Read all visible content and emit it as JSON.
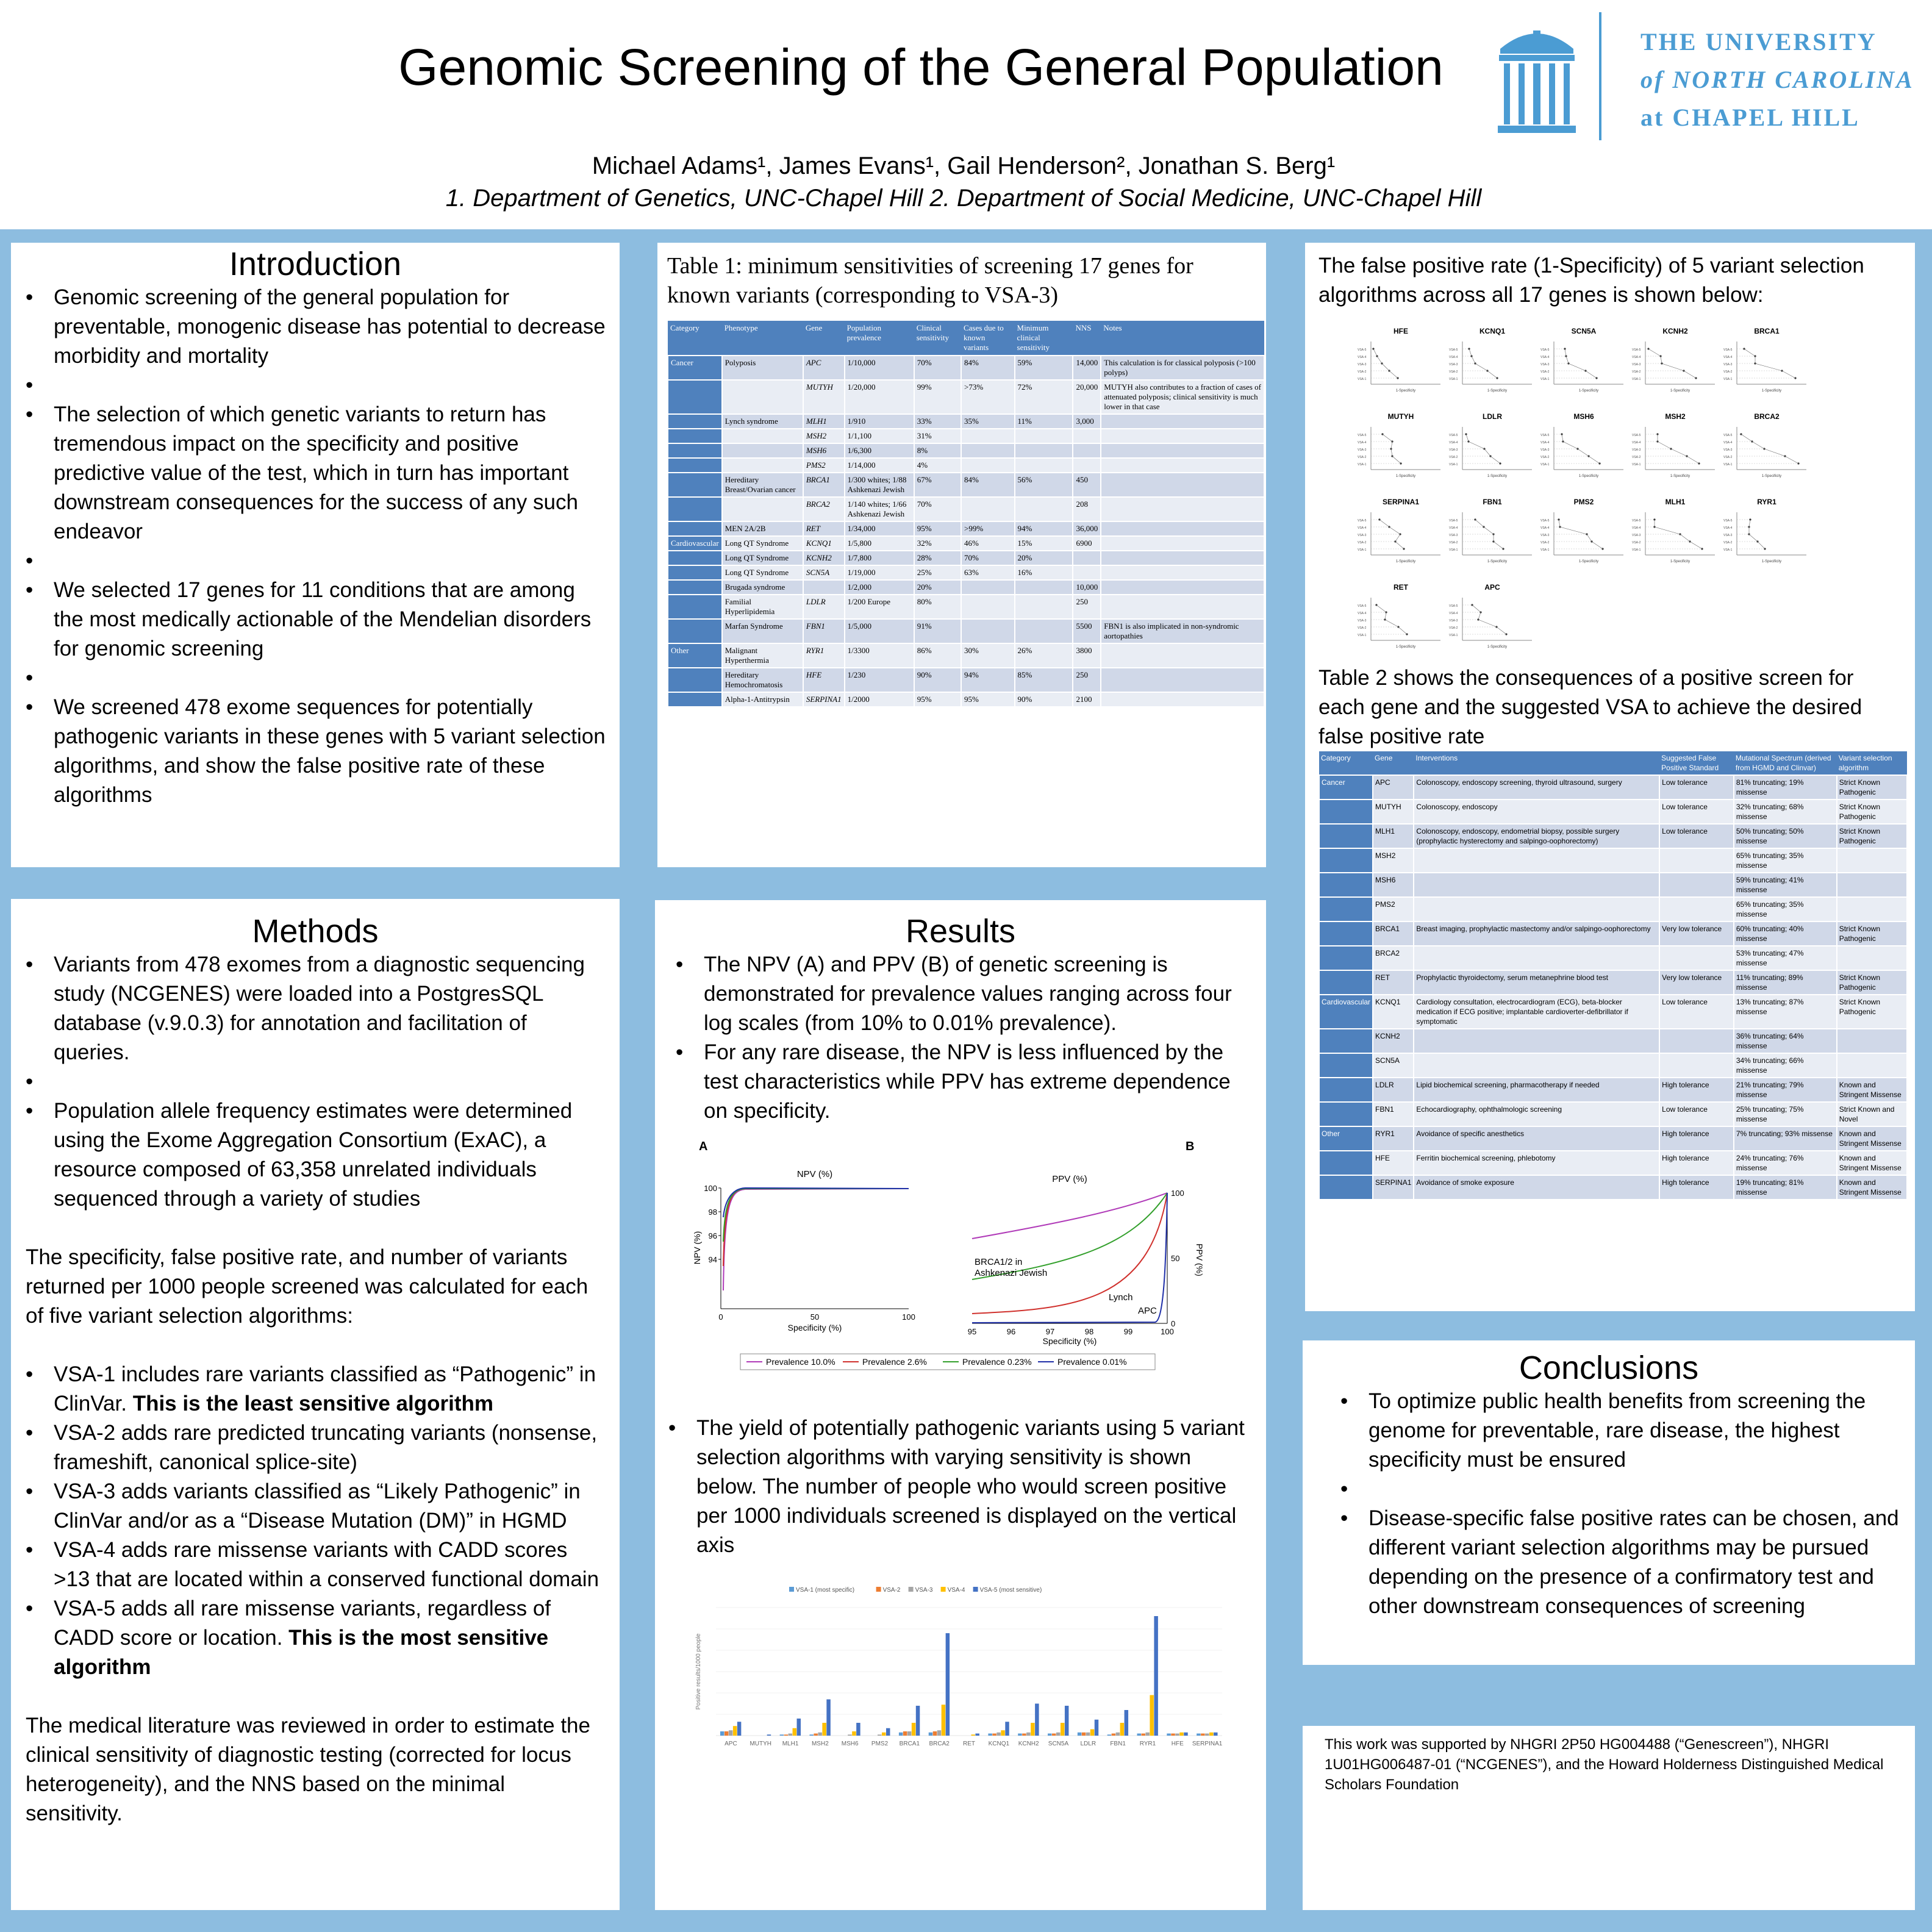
{
  "header": {
    "title": "Genomic Screening of the General Population",
    "authors": "Michael Adams¹, James Evans¹, Gail Henderson², Jonathan S. Berg¹",
    "affiliations": "1. Department of Genetics, UNC-Chapel Hill 2. Department of Social Medicine, UNC-Chapel Hill",
    "logo_line1": "THE UNIVERSITY",
    "logo_line2": "of NORTH CAROLINA",
    "logo_line3": "at CHAPEL HILL"
  },
  "introduction": {
    "title": "Introduction",
    "bullets": [
      "Genomic screening of the general population for preventable, monogenic disease has potential to decrease morbidity and mortality",
      "The selection of which genetic variants to return has tremendous impact on the specificity and positive predictive value of the test, which in turn has important downstream consequences for the success of any such endeavor",
      "We selected 17 genes for 11 conditions that are among the most medically actionable of the Mendelian disorders for genomic screening",
      "We screened 478 exome sequences for potentially pathogenic variants in these genes with 5 variant selection algorithms, and show the false positive rate of these algorithms"
    ]
  },
  "methods": {
    "title": "Methods",
    "bullets1": [
      "Variants from 478 exomes from a diagnostic sequencing study (NCGENES) were loaded into a PostgresSQL database (v.9.0.3) for annotation and facilitation of queries.",
      "Population allele frequency estimates were determined using the Exome Aggregation Consortium (ExAC), a resource composed of 63,358 unrelated individuals sequenced through a variety of studies"
    ],
    "para1": "The specificity, false positive rate, and number of variants returned per 1000 people screened was calculated for each of five variant selection algorithms:",
    "vsa1": "VSA-1 includes rare variants classified as “Pathogenic” in ClinVar.",
    "vsa1_bold": "This is the least sensitive algorithm",
    "vsa2": " VSA-2 adds rare predicted truncating variants (nonsense, frameshift, canonical splice-site)",
    "vsa3": "VSA-3 adds variants classified as “Likely Pathogenic” in ClinVar and/or as a “Disease Mutation (DM)” in HGMD",
    "vsa4": "VSA-4 adds rare missense variants with CADD scores >13 that are located within a conserved functional domain",
    "vsa5": "VSA-5 adds all rare missense variants, regardless of CADD score or location.",
    "vsa5_bold": "This is the most sensitive algorithm",
    "para2": "The medical literature was reviewed in order to estimate the clinical sensitivity of diagnostic testing (corrected for locus heterogeneity), and the NNS based on the minimal sensitivity."
  },
  "table1": {
    "title": "Table 1: minimum sensitivities of screening 17 genes for known variants (corresponding to VSA-3)",
    "headers": [
      "Category",
      "Phenotype",
      "Gene",
      "Population prevalence",
      "Clinical sensitivity",
      "Cases due to known variants",
      "Minimum clinical sensitivity",
      "NNS",
      "Notes"
    ],
    "rows": [
      [
        "Cancer",
        "Polyposis",
        "APC",
        "1/10,000",
        "70%",
        "84%",
        "59%",
        "14,000",
        "This calculation is for classical polyposis (>100 polyps)"
      ],
      [
        "",
        "",
        "MUTYH",
        "1/20,000",
        "99%",
        ">73%",
        "72%",
        "20,000",
        "MUTYH also contributes to a fraction of cases of attenuated polyposis; clinical sensitivity is much lower in that case"
      ],
      [
        "",
        "Lynch syndrome",
        "MLH1",
        "1/910",
        "33%",
        "35%",
        "11%",
        "3,000",
        ""
      ],
      [
        "",
        "",
        "MSH2",
        "1/1,100",
        "31%",
        "",
        "",
        "",
        ""
      ],
      [
        "",
        "",
        "MSH6",
        "1/6,300",
        "8%",
        "",
        "",
        "",
        ""
      ],
      [
        "",
        "",
        "PMS2",
        "1/14,000",
        "4%",
        "",
        "",
        "",
        ""
      ],
      [
        "",
        "Hereditary Breast/Ovarian cancer",
        "BRCA1",
        "1/300 whites; 1/88 Ashkenazi Jewish",
        "67%",
        "84%",
        "56%",
        "450",
        ""
      ],
      [
        "",
        "",
        "BRCA2",
        "1/140 whites; 1/66 Ashkenazi Jewish",
        "70%",
        "",
        "",
        "208",
        ""
      ],
      [
        "",
        "MEN 2A/2B",
        "RET",
        "1/34,000",
        "95%",
        ">99%",
        "94%",
        "36,000",
        ""
      ],
      [
        "Cardiovascular",
        "Long QT Syndrome",
        "KCNQ1",
        "1/5,800",
        "32%",
        "46%",
        "15%",
        "6900",
        ""
      ],
      [
        "",
        "Long QT Syndrome",
        "KCNH2",
        "1/7,800",
        "28%",
        "70%",
        "20%",
        "",
        ""
      ],
      [
        "",
        "Long QT Syndrome",
        "SCN5A",
        "1/19,000",
        "25%",
        "63%",
        "16%",
        "",
        ""
      ],
      [
        "",
        "Brugada syndrome",
        "",
        "1/2,000",
        "20%",
        "",
        "",
        "10,000",
        ""
      ],
      [
        "",
        "Familial Hyperlipidemia",
        "LDLR",
        "1/200 Europe",
        "80%",
        "",
        "",
        "250",
        ""
      ],
      [
        "",
        "Marfan Syndrome",
        "FBN1",
        "1/5,000",
        "91%",
        "",
        "",
        "5500",
        "FBN1 is also implicated in non-syndromic aortopathies"
      ],
      [
        "Other",
        "Malignant Hyperthermia",
        "RYR1",
        "1/3300",
        "86%",
        "30%",
        "26%",
        "3800",
        ""
      ],
      [
        "",
        "Hereditary Hemochromatosis",
        "HFE",
        "1/230",
        "90%",
        "94%",
        "85%",
        "250",
        ""
      ],
      [
        "",
        "Alpha-1-Antitrypsin",
        "SERPINA1",
        "1/2000",
        "95%",
        "95%",
        "90%",
        "2100",
        ""
      ]
    ]
  },
  "fpr": {
    "text": "The false positive rate (1-Specificity) of 5 variant selection algorithms across all 17 genes is shown below:",
    "genes": [
      "HFE",
      "KCNQ1",
      "SCN5A",
      "KCNH2",
      "BRCA1",
      "MUTYH",
      "LDLR",
      "MSH6",
      "MSH2",
      "BRCA2",
      "SERPINA1",
      "FBN1",
      "PMS2",
      "MLH1",
      "RYR1",
      "RET",
      "APC"
    ],
    "xlabel": "1-Specificity"
  },
  "table2": {
    "intro": "Table 2 shows the consequences of a positive screen for each gene and the suggested VSA to achieve the desired false positive rate",
    "headers": [
      "Category",
      "Gene",
      "Interventions",
      "Suggested False Positive Standard",
      "Mutational Spectrum (derived from HGMD and Clinvar)",
      "Variant selection algorithm"
    ],
    "rows": [
      [
        "Cancer",
        "APC",
        "Colonoscopy, endoscopy screening, thyroid ultrasound, surgery",
        "Low tolerance",
        "81% truncating; 19% missense",
        "Strict Known Pathogenic"
      ],
      [
        "",
        "MUTYH",
        "Colonoscopy, endoscopy",
        "Low tolerance",
        "32% truncating; 68% missense",
        "Strict Known Pathogenic"
      ],
      [
        "",
        "MLH1",
        "Colonoscopy, endoscopy, endometrial biopsy, possible surgery (prophylactic hysterectomy and salpingo-oophorectomy)",
        "Low tolerance",
        "50% truncating; 50% missense",
        "Strict Known Pathogenic"
      ],
      [
        "",
        "MSH2",
        "",
        "",
        "65% truncating; 35% missense",
        ""
      ],
      [
        "",
        "MSH6",
        "",
        "",
        "59% truncating; 41% missense",
        ""
      ],
      [
        "",
        "PMS2",
        "",
        "",
        "65% truncating; 35% missense",
        ""
      ],
      [
        "",
        "BRCA1",
        "Breast imaging, prophylactic mastectomy and/or salpingo-oophorectomy",
        "Very low tolerance",
        "60% truncating; 40% missense",
        "Strict Known Pathogenic"
      ],
      [
        "",
        "BRCA2",
        "",
        "",
        "53% truncating; 47% missense",
        ""
      ],
      [
        "",
        "RET",
        "Prophylactic thyroidectomy, serum metanephrine blood test",
        "Very low tolerance",
        "11% truncating; 89% missense",
        "Strict Known Pathogenic"
      ],
      [
        "Cardiovascular",
        "KCNQ1",
        "Cardiology consultation, electrocardiogram (ECG), beta-blocker medication if ECG positive; implantable cardioverter-defibrillator if symptomatic",
        "Low tolerance",
        "13% truncating; 87% missense",
        "Strict Known Pathogenic"
      ],
      [
        "",
        "KCNH2",
        "",
        "",
        "36% truncating; 64% missense",
        ""
      ],
      [
        "",
        "SCN5A",
        "",
        "",
        "34% truncating; 66% missense",
        ""
      ],
      [
        "",
        "LDLR",
        "Lipid biochemical screening, pharmacotherapy if needed",
        "High tolerance",
        "21% truncating; 79% missense",
        "Known and Stringent Missense"
      ],
      [
        "",
        "FBN1",
        "Echocardiography, ophthalmologic screening",
        "Low tolerance",
        "25% truncating; 75% missense",
        "Strict Known and Novel"
      ],
      [
        "Other",
        "RYR1",
        "Avoidance of specific anesthetics",
        "High tolerance",
        "7% truncating; 93% missense",
        "Known and Stringent Missense"
      ],
      [
        "",
        "HFE",
        "Ferritin biochemical screening, phlebotomy",
        "High tolerance",
        "24% truncating; 76% missense",
        "Known and Stringent Missense"
      ],
      [
        "",
        "SERPINA1",
        "Avoidance of smoke exposure",
        "High tolerance",
        "19% truncating; 81% missense",
        "Known and Stringent Missense"
      ]
    ]
  },
  "results": {
    "title": "Results",
    "bullets1": [
      "The NPV (A)  and PPV (B) of genetic screening is demonstrated for prevalence values ranging across four log scales (from 10% to 0.01% prevalence).",
      "For any rare disease, the NPV is less influenced by the test characteristics while PPV has extreme dependence on specificity."
    ],
    "bullets2": [
      "The yield of potentially pathogenic variants using 5 variant selection algorithms with varying sensitivity is shown below. The number of people who would screen positive per 1000 individuals screened is displayed on the vertical axis"
    ]
  },
  "npvppv": {
    "panel_a": "A",
    "panel_b": "B",
    "npv_title": "NPV (%)",
    "ppv_title": "PPV (%)",
    "npv_ylabel": "NPV (%)",
    "ppv_ylabel": "PPV (%)",
    "xlabel": "Specificity (%)",
    "npv_yticks": [
      "100",
      "98",
      "96",
      "94"
    ],
    "npv_xticks": [
      "0",
      "50",
      "100"
    ],
    "ppv_yticks": [
      "100",
      "50",
      "0"
    ],
    "ppv_xticks": [
      "95",
      "96",
      "97",
      "98",
      "99",
      "100"
    ],
    "ann_brca": "BRCA1/2 in",
    "ann_brca2": "Ashkenazi Jewish",
    "ann_lynch": "Lynch",
    "ann_apc": "APC",
    "legend": [
      "Prevalence 10.0%",
      "Prevalence 2.6%",
      "Prevalence 0.23%",
      "Prevalence 0.01%"
    ],
    "colors": [
      "#b03ab8",
      "#d0312d",
      "#33a02c",
      "#1f2fa8"
    ]
  },
  "chart_data": {
    "type": "bar",
    "ylabel": "Positive results/1000 people",
    "categories": [
      "APC",
      "MUTYH",
      "MLH1",
      "MSH2",
      "MSH6",
      "PMS2",
      "BRCA1",
      "BRCA2",
      "RET",
      "KCNQ1",
      "KCNH2",
      "SCN5A",
      "LDLR",
      "FBN1",
      "RYR1",
      "HFE",
      "SERPINA1"
    ],
    "series": [
      {
        "name": "VSA-1 (most specific)",
        "color": "#5b9bd5",
        "values": [
          4,
          0,
          1,
          1,
          0,
          0,
          3,
          3,
          0,
          2,
          2,
          2,
          3,
          1,
          2,
          2,
          2
        ]
      },
      {
        "name": "VSA-2",
        "color": "#ed7d31",
        "values": [
          4,
          0,
          1,
          2,
          0,
          0,
          4,
          4,
          0,
          2,
          2,
          2,
          3,
          2,
          2,
          2,
          2
        ]
      },
      {
        "name": "VSA-3",
        "color": "#a5a5a5",
        "values": [
          5,
          0,
          2,
          3,
          1,
          1,
          4,
          5,
          0,
          3,
          3,
          3,
          3,
          3,
          3,
          2,
          2
        ]
      },
      {
        "name": "VSA-4",
        "color": "#ffc000",
        "values": [
          9,
          0,
          7,
          12,
          4,
          3,
          12,
          29,
          1,
          5,
          12,
          12,
          6,
          12,
          38,
          3,
          3
        ]
      },
      {
        "name": "VSA-5 (most sensitive)",
        "color": "#4472c4",
        "values": [
          13,
          1,
          16,
          34,
          12,
          7,
          28,
          96,
          2,
          13,
          30,
          28,
          15,
          24,
          112,
          3,
          3
        ]
      }
    ],
    "ylim": [
      0,
      120
    ]
  },
  "conclusions": {
    "title": "Conclusions",
    "bullets": [
      "To optimize public health benefits from screening the genome for preventable, rare disease, the highest specificity must be ensured",
      "Disease-specific false positive rates can be chosen, and different variant selection algorithms may be pursued depending on the presence of a confirmatory test and other downstream consequences of screening"
    ]
  },
  "funding": {
    "text": "This work was supported by NHGRI 2P50 HG004488 (“Genescreen”), NHGRI 1U01HG006487-01 (“NCGENES”), and the Howard Holderness Distinguished Medical Scholars Foundation"
  }
}
